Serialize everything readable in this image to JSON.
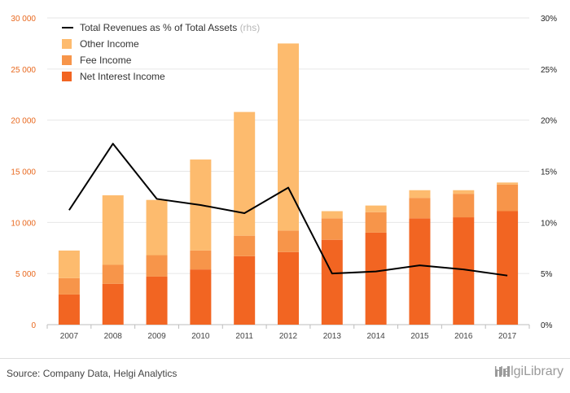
{
  "chart_data": {
    "type": "bar",
    "stacked": true,
    "categories": [
      "2007",
      "2008",
      "2009",
      "2010",
      "2011",
      "2012",
      "2013",
      "2014",
      "2015",
      "2016",
      "2017"
    ],
    "series": [
      {
        "name": "Net Interest Income",
        "color": "#f26522",
        "values": [
          2950,
          4000,
          4700,
          5400,
          6700,
          7100,
          8300,
          9000,
          10400,
          10500,
          11100
        ]
      },
      {
        "name": "Fee Income",
        "color": "#f7954a",
        "values": [
          1600,
          1850,
          2100,
          1850,
          2000,
          2100,
          2100,
          2000,
          2000,
          2300,
          2600
        ]
      },
      {
        "name": "Other Income",
        "color": "#fdbb6e",
        "values": [
          2700,
          6800,
          5400,
          8900,
          12100,
          18300,
          700,
          650,
          750,
          350,
          200
        ]
      }
    ],
    "line_series": {
      "name": "Total Revenues as % of Total Assets",
      "name_suffix": "(rhs)",
      "color": "#000000",
      "values": [
        11.2,
        17.7,
        12.3,
        11.7,
        10.9,
        13.4,
        5.0,
        5.2,
        5.8,
        5.4,
        4.8
      ]
    },
    "y_left": {
      "min": 0,
      "max": 30000,
      "ticks": [
        0,
        5000,
        10000,
        15000,
        20000,
        25000,
        30000
      ],
      "tick_labels": [
        "0",
        "5 000",
        "10 000",
        "15 000",
        "20 000",
        "25 000",
        "30 000"
      ]
    },
    "y_right": {
      "min": 0,
      "max": 30,
      "ticks": [
        0,
        5,
        10,
        15,
        20,
        25,
        30
      ],
      "tick_labels": [
        "0%",
        "5%",
        "10%",
        "15%",
        "20%",
        "25%",
        "30%"
      ]
    },
    "grid": true,
    "legend_position": "top-left",
    "title": "",
    "xlabel": "",
    "ylabel": ""
  },
  "footer": {
    "source": "Source: Company Data, Helgi Analytics",
    "brand": "HelgiLibrary"
  },
  "colors": {
    "left_axis": "#e8681e",
    "right_axis": "#222222",
    "grid": "#e6e6e6"
  }
}
